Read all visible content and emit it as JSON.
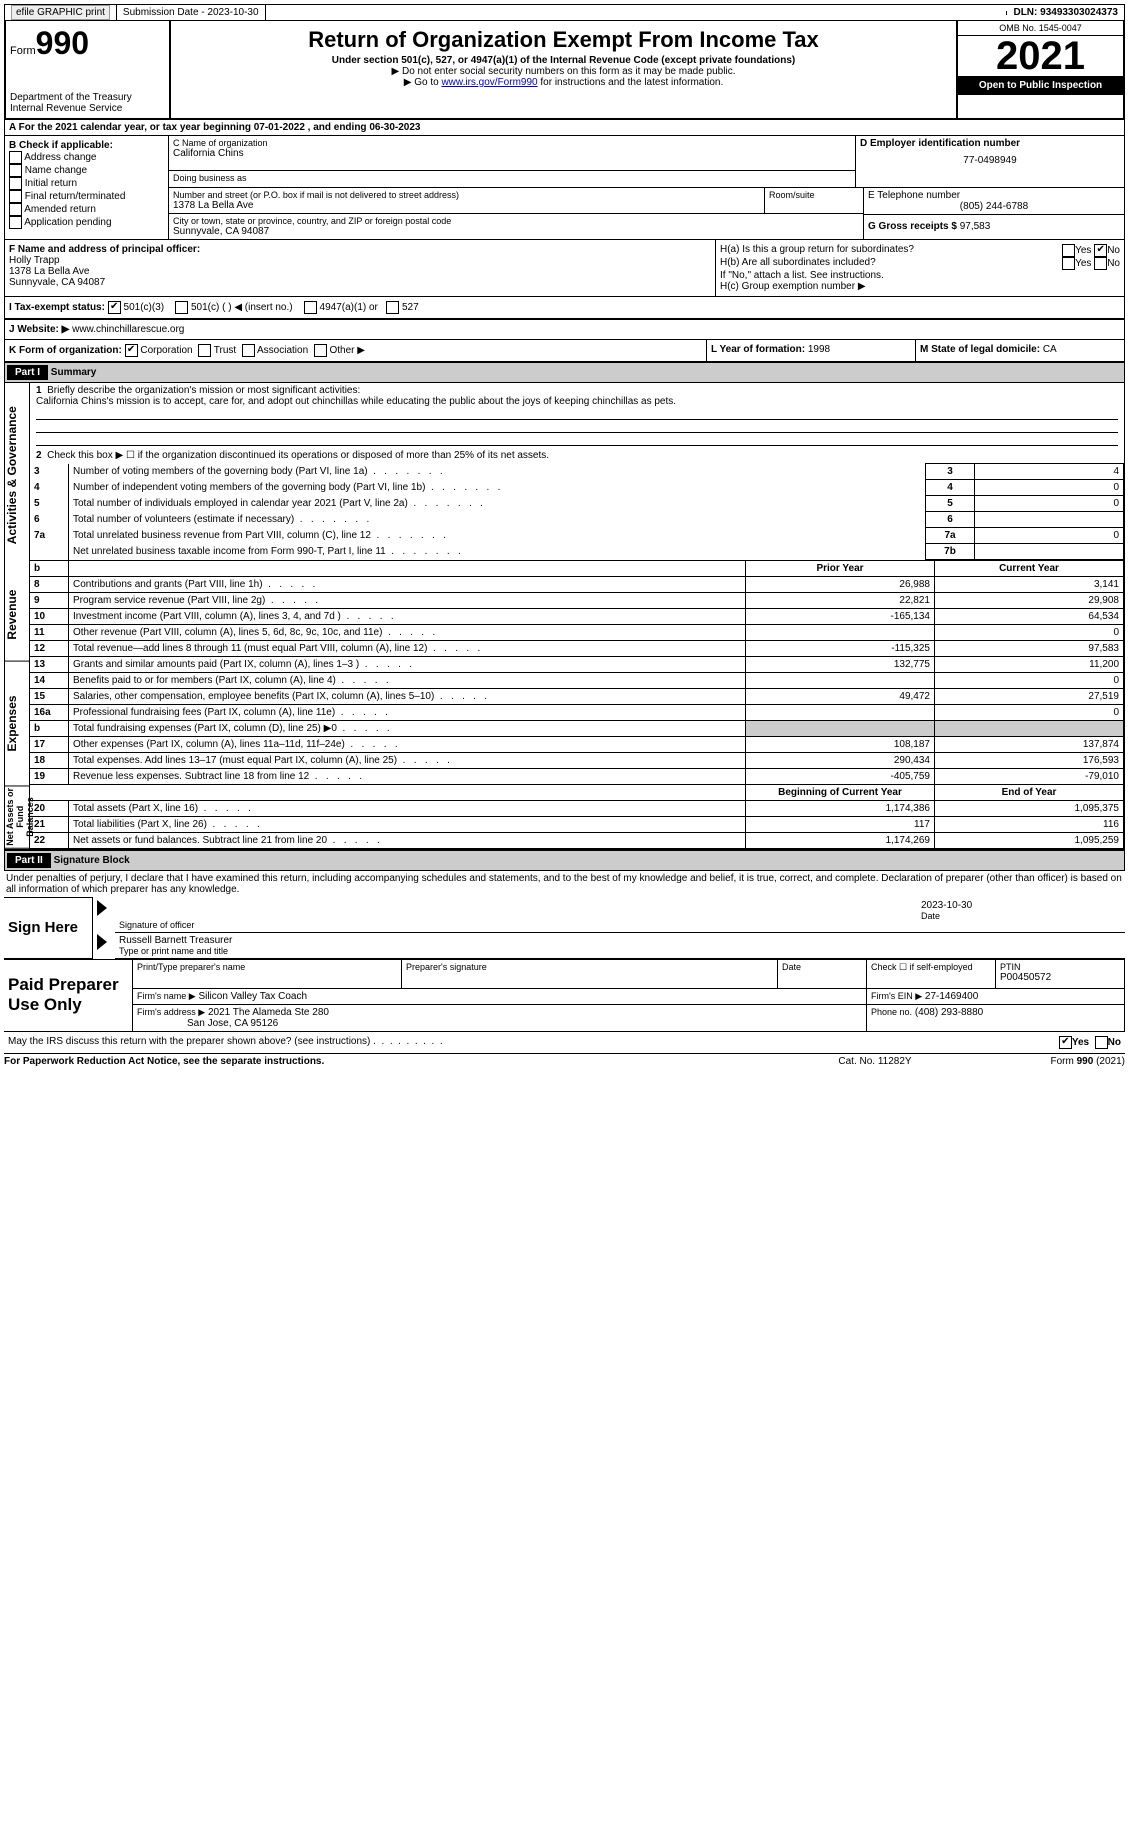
{
  "topbar": {
    "efile": "efile GRAPHIC print",
    "submission": "Submission Date - 2023-10-30",
    "dln": "DLN: 93493303024373"
  },
  "header": {
    "form_prefix": "Form",
    "form_no": "990",
    "title": "Return of Organization Exempt From Income Tax",
    "subtitle": "Under section 501(c), 527, or 4947(a)(1) of the Internal Revenue Code (except private foundations)",
    "note1": "▶ Do not enter social security numbers on this form as it may be made public.",
    "note2_pre": "▶ Go to ",
    "note2_link": "www.irs.gov/Form990",
    "note2_post": " for instructions and the latest information.",
    "dept": "Department of the Treasury",
    "irs": "Internal Revenue Service",
    "omb": "OMB No. 1545-0047",
    "year": "2021",
    "open": "Open to Public Inspection"
  },
  "a_line": "A For the 2021 calendar year, or tax year beginning 07-01-2022    , and ending 06-30-2023",
  "b": {
    "label": "B Check if applicable:",
    "opts": [
      "Address change",
      "Name change",
      "Initial return",
      "Final return/terminated",
      "Amended return",
      "Application pending"
    ]
  },
  "c": {
    "name_lbl": "C Name of organization",
    "name": "California Chins",
    "dba_lbl": "Doing business as",
    "addr_lbl": "Number and street (or P.O. box if mail is not delivered to street address)",
    "room_lbl": "Room/suite",
    "addr": "1378 La Bella Ave",
    "city_lbl": "City or town, state or province, country, and ZIP or foreign postal code",
    "city": "Sunnyvale, CA   94087"
  },
  "d": {
    "lbl": "D Employer identification number",
    "val": "77-0498949"
  },
  "e": {
    "lbl": "E Telephone number",
    "val": "(805) 244-6788"
  },
  "g": {
    "lbl": "G Gross receipts $",
    "val": "97,583"
  },
  "f": {
    "lbl": "F  Name and address of principal officer:",
    "name": "Holly Trapp",
    "addr1": "1378 La Bella Ave",
    "addr2": "Sunnyvale, CA   94087"
  },
  "h": {
    "a": "H(a)  Is this a group return for subordinates?",
    "b": "H(b)  Are all subordinates included?",
    "note": "If \"No,\" attach a list. See instructions.",
    "c": "H(c)  Group exemption number ▶",
    "yes": "Yes",
    "no": "No"
  },
  "i": {
    "lbl": "I   Tax-exempt status:",
    "o1": "501(c)(3)",
    "o2": "501(c) (   ) ◀ (insert no.)",
    "o3": "4947(a)(1) or",
    "o4": "527"
  },
  "j": {
    "lbl": "J   Website: ▶",
    "val": "www.chinchillarescue.org"
  },
  "k": {
    "lbl": "K Form of organization:",
    "o1": "Corporation",
    "o2": "Trust",
    "o3": "Association",
    "o4": "Other ▶"
  },
  "l": {
    "lbl": "L Year of formation:",
    "val": "1998"
  },
  "m": {
    "lbl": "M State of legal domicile:",
    "val": "CA"
  },
  "part1": {
    "hdr": "Part I",
    "title": "Summary",
    "side1": "Activities & Governance",
    "side2": "Revenue",
    "side3": "Expenses",
    "side4": "Net Assets or Fund Balances",
    "q1": "Briefly describe the organization's mission or most significant activities:",
    "mission": "California Chins's mission is to accept, care for, and adopt out chinchillas while educating the public about the joys of keeping chinchillas as pets.",
    "q2": "Check this box ▶ ☐  if the organization discontinued its operations or disposed of more than 25% of its net assets.",
    "rows_top": [
      {
        "n": "3",
        "t": "Number of voting members of the governing body (Part VI, line 1a)",
        "box": "3",
        "v": "4"
      },
      {
        "n": "4",
        "t": "Number of independent voting members of the governing body (Part VI, line 1b)",
        "box": "4",
        "v": "0"
      },
      {
        "n": "5",
        "t": "Total number of individuals employed in calendar year 2021 (Part V, line 2a)",
        "box": "5",
        "v": "0"
      },
      {
        "n": "6",
        "t": "Total number of volunteers (estimate if necessary)",
        "box": "6",
        "v": ""
      },
      {
        "n": "7a",
        "t": "Total unrelated business revenue from Part VIII, column (C), line 12",
        "box": "7a",
        "v": "0"
      },
      {
        "n": "",
        "t": "Net unrelated business taxable income from Form 990-T, Part I, line 11",
        "box": "7b",
        "v": ""
      }
    ],
    "col_prior": "Prior Year",
    "col_curr": "Current Year",
    "rows_rev": [
      {
        "n": "8",
        "t": "Contributions and grants (Part VIII, line 1h)",
        "p": "26,988",
        "c": "3,141"
      },
      {
        "n": "9",
        "t": "Program service revenue (Part VIII, line 2g)",
        "p": "22,821",
        "c": "29,908"
      },
      {
        "n": "10",
        "t": "Investment income (Part VIII, column (A), lines 3, 4, and 7d )",
        "p": "-165,134",
        "c": "64,534"
      },
      {
        "n": "11",
        "t": "Other revenue (Part VIII, column (A), lines 5, 6d, 8c, 9c, 10c, and 11e)",
        "p": "",
        "c": "0"
      },
      {
        "n": "12",
        "t": "Total revenue—add lines 8 through 11 (must equal Part VIII, column (A), line 12)",
        "p": "-115,325",
        "c": "97,583"
      }
    ],
    "rows_exp": [
      {
        "n": "13",
        "t": "Grants and similar amounts paid (Part IX, column (A), lines 1–3 )",
        "p": "132,775",
        "c": "11,200"
      },
      {
        "n": "14",
        "t": "Benefits paid to or for members (Part IX, column (A), line 4)",
        "p": "",
        "c": "0"
      },
      {
        "n": "15",
        "t": "Salaries, other compensation, employee benefits (Part IX, column (A), lines 5–10)",
        "p": "49,472",
        "c": "27,519"
      },
      {
        "n": "16a",
        "t": "Professional fundraising fees (Part IX, column (A), line 11e)",
        "p": "",
        "c": "0"
      },
      {
        "n": "b",
        "t": "Total fundraising expenses (Part IX, column (D), line 25) ▶0",
        "p": "SHADE",
        "c": "SHADE"
      },
      {
        "n": "17",
        "t": "Other expenses (Part IX, column (A), lines 11a–11d, 11f–24e)",
        "p": "108,187",
        "c": "137,874"
      },
      {
        "n": "18",
        "t": "Total expenses. Add lines 13–17 (must equal Part IX, column (A), line 25)",
        "p": "290,434",
        "c": "176,593"
      },
      {
        "n": "19",
        "t": "Revenue less expenses. Subtract line 18 from line 12",
        "p": "-405,759",
        "c": "-79,010"
      }
    ],
    "col_begin": "Beginning of Current Year",
    "col_end": "End of Year",
    "rows_net": [
      {
        "n": "20",
        "t": "Total assets (Part X, line 16)",
        "p": "1,174,386",
        "c": "1,095,375"
      },
      {
        "n": "21",
        "t": "Total liabilities (Part X, line 26)",
        "p": "117",
        "c": "116"
      },
      {
        "n": "22",
        "t": "Net assets or fund balances. Subtract line 21 from line 20",
        "p": "1,174,269",
        "c": "1,095,259"
      }
    ]
  },
  "part2": {
    "hdr": "Part II",
    "title": "Signature Block",
    "decl": "Under penalties of perjury, I declare that I have examined this return, including accompanying schedules and statements, and to the best of my knowledge and belief, it is true, correct, and complete. Declaration of preparer (other than officer) is based on all information of which preparer has any knowledge.",
    "sign_here": "Sign Here",
    "sig_officer": "Signature of officer",
    "sig_date": "2023-10-30",
    "date_lbl": "Date",
    "officer_name": "Russell Barnett  Treasurer",
    "officer_lbl": "Type or print name and title",
    "paid": "Paid Preparer Use Only",
    "prep_name_lbl": "Print/Type preparer's name",
    "prep_sig_lbl": "Preparer's signature",
    "check_lbl": "Check ☐ if self-employed",
    "ptin_lbl": "PTIN",
    "ptin": "P00450572",
    "firm_name_lbl": "Firm's name    ▶",
    "firm_name": "Silicon Valley Tax Coach",
    "firm_ein_lbl": "Firm's EIN ▶",
    "firm_ein": "27-1469400",
    "firm_addr_lbl": "Firm's address ▶",
    "firm_addr1": "2021 The Alameda Ste 280",
    "firm_addr2": "San Jose, CA   95126",
    "phone_lbl": "Phone no.",
    "phone": "(408) 293-8880",
    "discuss": "May the IRS discuss this return with the preparer shown above? (see instructions)",
    "yes": "Yes",
    "no": "No"
  },
  "footer": {
    "pra": "For Paperwork Reduction Act Notice, see the separate instructions.",
    "cat": "Cat. No. 11282Y",
    "form": "Form 990 (2021)"
  }
}
